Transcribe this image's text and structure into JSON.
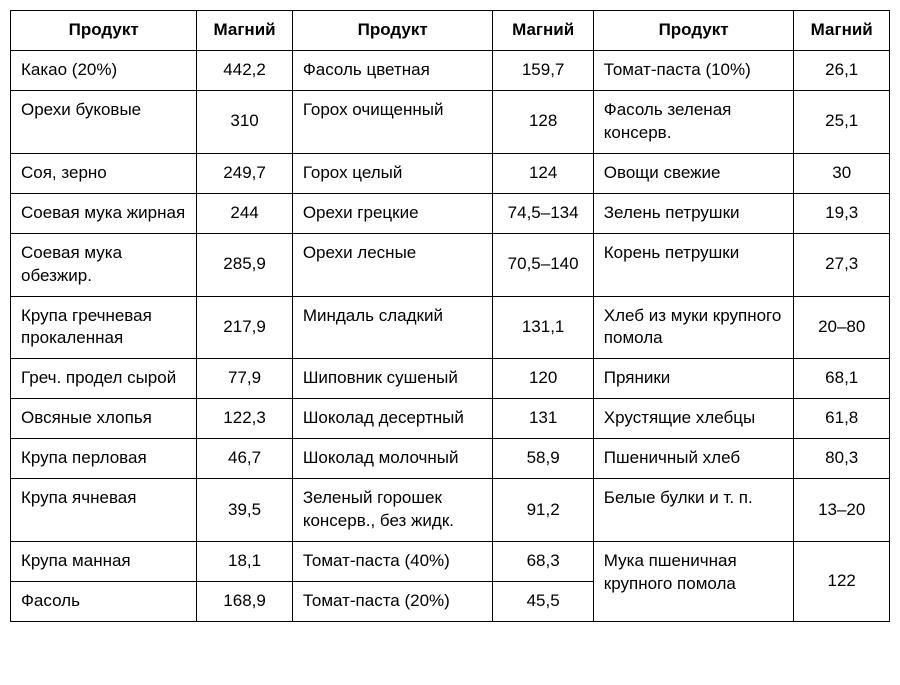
{
  "table": {
    "type": "table",
    "border_color": "#000000",
    "background_color": "#ffffff",
    "text_color": "#000000",
    "font_family": "Arial, Helvetica, sans-serif",
    "header_font_weight": "bold",
    "header_fontsize": 17,
    "cell_fontsize": 17,
    "columns": [
      {
        "label": "Продукт",
        "align": "left",
        "width_pct": 19.5
      },
      {
        "label": "Магний",
        "align": "center",
        "width_pct": 10
      },
      {
        "label": "Продукт",
        "align": "left",
        "width_pct": 21
      },
      {
        "label": "Магний",
        "align": "center",
        "width_pct": 10.5
      },
      {
        "label": "Продукт",
        "align": "left",
        "width_pct": 21
      },
      {
        "label": "Магний",
        "align": "center",
        "width_pct": 10
      }
    ],
    "rows": [
      {
        "c1": "Какао (20%)",
        "v1": "442,2",
        "c2": "Фасоль цветная",
        "v2": "159,7",
        "c3": "Томат-паста (10%)",
        "v3": "26,1"
      },
      {
        "c1": "Орехи буковые",
        "v1": "310",
        "c2": "Горох очищенный",
        "v2": "128",
        "c3": "Фасоль зеленая консерв.",
        "v3": "25,1"
      },
      {
        "c1": "Соя, зерно",
        "v1": "249,7",
        "c2": "Горох целый",
        "v2": "124",
        "c3": "Овощи свежие",
        "v3": "30"
      },
      {
        "c1": "Соевая мука жирная",
        "v1": "244",
        "c2": "Орехи грецкие",
        "v2": "74,5–134",
        "c3": "Зелень петрушки",
        "v3": "19,3"
      },
      {
        "c1": "Соевая мука обезжир.",
        "v1": "285,9",
        "c2": "Орехи лесные",
        "v2": "70,5–140",
        "c3": "Корень петрушки",
        "v3": "27,3"
      },
      {
        "c1": "Крупа гречневая прокаленная",
        "v1": "217,9",
        "c2": "Миндаль сладкий",
        "v2": "131,1",
        "c3": "Хлеб из муки крупного помола",
        "v3": "20–80"
      },
      {
        "c1": "Греч. продел сырой",
        "v1": "77,9",
        "c2": "Шиповник сушеный",
        "v2": "120",
        "c3": "Пряники",
        "v3": "68,1"
      },
      {
        "c1": "Овсяные хлопья",
        "v1": "122,3",
        "c2": "Шоколад десертный",
        "v2": "131",
        "c3": "Хрустящие хлебцы",
        "v3": "61,8"
      },
      {
        "c1": "Крупа перловая",
        "v1": "46,7",
        "c2": "Шоколад молочный",
        "v2": "58,9",
        "c3": "Пшеничный хлеб",
        "v3": "80,3"
      },
      {
        "c1": "Крупа ячневая",
        "v1": "39,5",
        "c2": "Зеленый горошек консерв., без жидк.",
        "v2": "91,2",
        "c3": "Белые булки и т. п.",
        "v3": "13–20"
      },
      {
        "c1": "Крупа манная",
        "v1": "18,1",
        "c2": "Томат-паста (40%)",
        "v2": "68,3",
        "c3": "Мука пшеничная крупного помола",
        "v3": "122",
        "c3_rowspan": 2,
        "v3_rowspan": 2
      },
      {
        "c1": "Фасоль",
        "v1": "168,9",
        "c2": "Томат-паста (20%)",
        "v2": "45,5",
        "skip_col3": true
      }
    ]
  }
}
